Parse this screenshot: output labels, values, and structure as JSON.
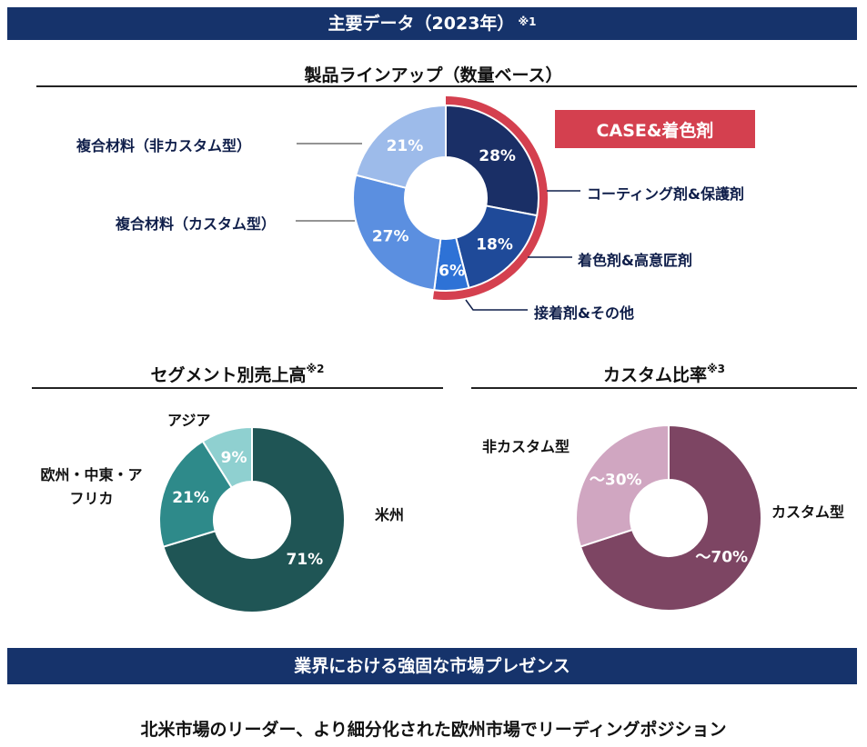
{
  "header": {
    "title": "主要データ（2023年）",
    "note": "※1"
  },
  "lineup": {
    "title": "製品ラインアップ（数量ベース）",
    "case_label": "CASE&着色剤"
  },
  "segment": {
    "title": "セグメント別売上高",
    "note": "※2"
  },
  "custom": {
    "title": "カスタム比率",
    "note": "※3"
  },
  "presence": {
    "banner": "業界における強固な市場プレゼンス",
    "statement": "北米市場のリーダー、より細分化された欧州市場でリーディングポジション"
  },
  "chart_data": [
    {
      "type": "pie",
      "title": "製品ラインアップ（数量ベース）",
      "donut": true,
      "slices": [
        {
          "label": "コーティング剤&保護剤",
          "value": 28,
          "display": "28%",
          "color": "#1a2f66"
        },
        {
          "label": "着色剤&高意匠剤",
          "value": 18,
          "display": "18%",
          "color": "#1f4a99"
        },
        {
          "label": "接着剤&その他",
          "value": 6,
          "display": "6%",
          "color": "#2e72d6"
        },
        {
          "label": "複合材料（カスタム型）",
          "value": 27,
          "display": "27%",
          "color": "#5b8fe0"
        },
        {
          "label": "複合材料（非カスタム型）",
          "value": 21,
          "display": "21%",
          "color": "#9dbbea"
        }
      ]
    },
    {
      "type": "pie",
      "title": "セグメント別売上高",
      "donut": true,
      "slices": [
        {
          "label": "米州",
          "value": 71,
          "display": "71%",
          "color": "#1f5555"
        },
        {
          "label": "欧州・中東・アフリカ",
          "value": 21,
          "display": "21%",
          "color": "#2e8a8a"
        },
        {
          "label": "アジア",
          "value": 9,
          "display": "9%",
          "color": "#8fd0d0"
        }
      ]
    },
    {
      "type": "pie",
      "title": "カスタム比率",
      "donut": true,
      "slices": [
        {
          "label": "カスタム型",
          "value": 70,
          "display": "～70%",
          "color": "#7d4563"
        },
        {
          "label": "非カスタム型",
          "value": 30,
          "display": "～30%",
          "color": "#d0a6c1"
        }
      ]
    }
  ]
}
